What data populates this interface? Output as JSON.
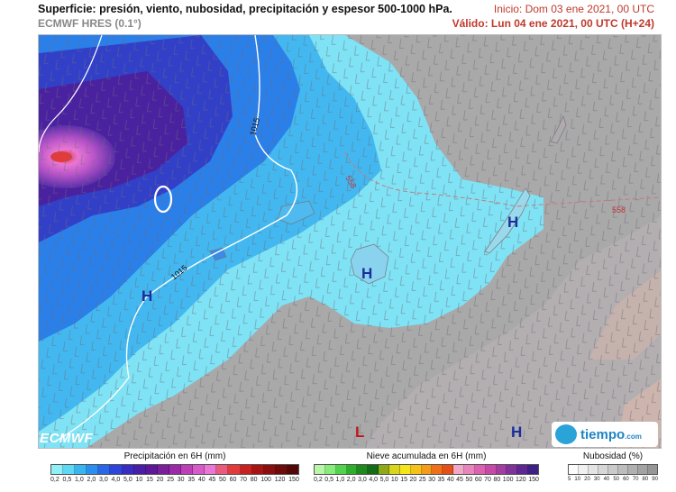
{
  "header": {
    "title": "Superficie: presión, viento, nubosidad, precipitación y espesor 500-1000 hPa.",
    "model": "ECMWF HRES (0.1°)",
    "init": "Inicio: Dom 03 ene 2021, 00 UTC",
    "valid": "Válido: Lun 04 ene 2021, 00 UTC (H+24)"
  },
  "map": {
    "isobar_labels": [
      "1015",
      "1015"
    ],
    "thickness_labels": [
      "558",
      "558"
    ],
    "pressure_centers": [
      "H",
      "H",
      "H",
      "H",
      "L"
    ]
  },
  "logos": {
    "ecmwf": "ECMWF",
    "tiempo": "tiempo",
    "tiempo_suffix": ".com"
  },
  "legends": {
    "precip": {
      "title": "Precipitación en 6H (mm)",
      "ticks": [
        "0,2",
        "0,5",
        "1,0",
        "2,0",
        "3,0",
        "4,0",
        "5,0",
        "10",
        "15",
        "20",
        "25",
        "30",
        "35",
        "40",
        "45",
        "50",
        "60",
        "70",
        "80",
        "100",
        "120",
        "150"
      ],
      "colors": [
        "#8ff0f8",
        "#5fd8f5",
        "#39b6f2",
        "#2b8ff0",
        "#2a67e8",
        "#2f44db",
        "#3a2cc0",
        "#4a1fa8",
        "#5c1899",
        "#7a1e9a",
        "#9a2aa8",
        "#bd3fb8",
        "#d85ac8",
        "#e977d3",
        "#ea5a7d",
        "#e23b3b",
        "#c92020",
        "#a81414",
        "#8a0f0f",
        "#6e0c0c",
        "#530808"
      ]
    },
    "snow": {
      "title": "Nieve acumulada en 6H (mm)",
      "ticks": [
        "0,2",
        "0,5",
        "1,0",
        "2,0",
        "3,0",
        "4,0",
        "5,0",
        "10",
        "15",
        "20",
        "25",
        "30",
        "35",
        "40",
        "45",
        "50",
        "60",
        "70",
        "80",
        "100",
        "120",
        "150"
      ],
      "colors": [
        "#b9f6a8",
        "#86ec7a",
        "#52d24d",
        "#2fae2c",
        "#1e8a1e",
        "#166b16",
        "#8ea916",
        "#d9d51a",
        "#f5e61a",
        "#f6c21a",
        "#f49b1a",
        "#f07019",
        "#e44f19",
        "#f1a8c9",
        "#e985bd",
        "#dc61b0",
        "#c74aa8",
        "#a23ea1",
        "#7e329a",
        "#5d2893",
        "#3d1f86"
      ]
    },
    "cloud": {
      "title": "Nubosidad (%)",
      "ticks": [
        "5",
        "10",
        "20",
        "30",
        "40",
        "50",
        "60",
        "70",
        "80",
        "90"
      ],
      "colors": [
        "#fdfdfd",
        "#f1f1f1",
        "#e4e4e4",
        "#d7d7d7",
        "#cacaca",
        "#bdbdbd",
        "#b0b0b0",
        "#a3a3a3",
        "#969696"
      ]
    }
  }
}
